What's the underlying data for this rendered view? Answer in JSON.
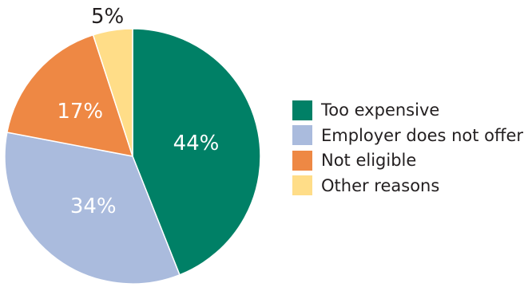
{
  "chart_data": {
    "type": "pie",
    "slices": [
      {
        "name": "Too expensive",
        "value": 44,
        "label": "44%",
        "color": "#008066",
        "label_color": "#ffffff"
      },
      {
        "name": "Employer does not offer",
        "value": 34,
        "label": "34%",
        "color": "#aabbdd",
        "label_color": "#ffffff"
      },
      {
        "name": "Not eligible",
        "value": 17,
        "label": "17%",
        "color": "#ee8844",
        "label_color": "#ffffff"
      },
      {
        "name": "Other reasons",
        "value": 5,
        "label": "5%",
        "color": "#ffdd88",
        "label_color": "#231f20"
      }
    ],
    "start_angle": "12 o'clock",
    "direction": "clockwise",
    "legend": {
      "position": "right",
      "items": [
        {
          "label": "Too expensive",
          "color": "#008066"
        },
        {
          "label": "Employer does not offer",
          "color": "#aabbdd"
        },
        {
          "label": "Not eligible",
          "color": "#ee8844"
        },
        {
          "label": "Other reasons",
          "color": "#ffdd88"
        }
      ]
    }
  }
}
